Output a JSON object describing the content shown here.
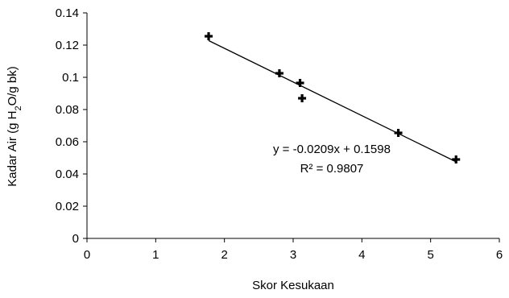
{
  "chart_data": {
    "type": "scatter",
    "xlabel": "Skor Kesukaan",
    "ylabel_parts": [
      "Kadar Air (g H",
      "2",
      "O/g bk)"
    ],
    "xlim": [
      0,
      6
    ],
    "ylim": [
      0,
      0.14
    ],
    "x_ticks": [
      "0",
      "1",
      "2",
      "3",
      "4",
      "5",
      "6"
    ],
    "y_ticks": [
      "0",
      "0.02",
      "0.04",
      "0.06",
      "0.08",
      "0.1",
      "0.12",
      "0.14"
    ],
    "grid": false,
    "legend": "none",
    "marker": "plus",
    "marker_color": "#000000",
    "line_color": "#000000",
    "points": [
      {
        "x": 1.77,
        "y": 0.1255
      },
      {
        "x": 2.8,
        "y": 0.1025
      },
      {
        "x": 3.1,
        "y": 0.0965
      },
      {
        "x": 3.13,
        "y": 0.087
      },
      {
        "x": 4.53,
        "y": 0.0655
      },
      {
        "x": 5.37,
        "y": 0.049
      }
    ],
    "trendline": {
      "slope": -0.0209,
      "intercept": 0.1598,
      "x_start": 1.77,
      "x_end": 5.37
    },
    "annotations": {
      "equation": "y = -0.0209x + 0.1598",
      "r_squared": "R² = 0.9807"
    }
  }
}
